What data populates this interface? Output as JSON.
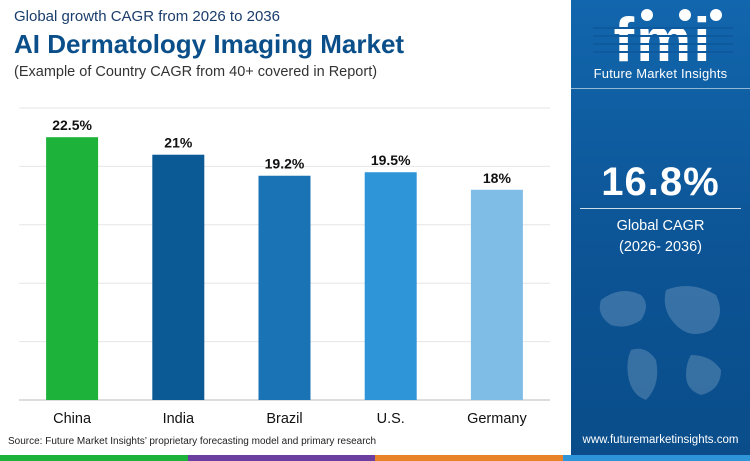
{
  "header": {
    "top_line": "Global growth CAGR from 2026 to 2036",
    "title": "AI Dermatology Imaging Market",
    "sub_line": "(Example of Country CAGR from 40+ covered in Report)"
  },
  "chart_data": {
    "type": "bar",
    "categories": [
      "China",
      "India",
      "Brazil",
      "U.S.",
      "Germany"
    ],
    "values": [
      22.5,
      21,
      19.2,
      19.5,
      18
    ],
    "value_labels": [
      "22.5%",
      "21%",
      "19.2%",
      "19.5%",
      "18%"
    ],
    "ylim": [
      0,
      25
    ],
    "grid": true,
    "colors": [
      "#1db33b",
      "#0b5a96",
      "#1a73b5",
      "#2d95d8",
      "#7fbde6"
    ]
  },
  "source": "Source: Future Market Insights’ proprietary forecasting model and primary research",
  "sidebar": {
    "logo_letters": "fmi",
    "logo_name": "Future Market Insights",
    "cagr_value": "16.8%",
    "cagr_label_line1": "Global CAGR",
    "cagr_label_line2": "(2026- 2036)",
    "website": "www.futuremarketinsights.com",
    "bg_color": "#0d5a9e"
  },
  "bottom_stripe_colors": [
    "#1db33b",
    "#6b3fa0",
    "#e8832a",
    "#2d95d8"
  ]
}
